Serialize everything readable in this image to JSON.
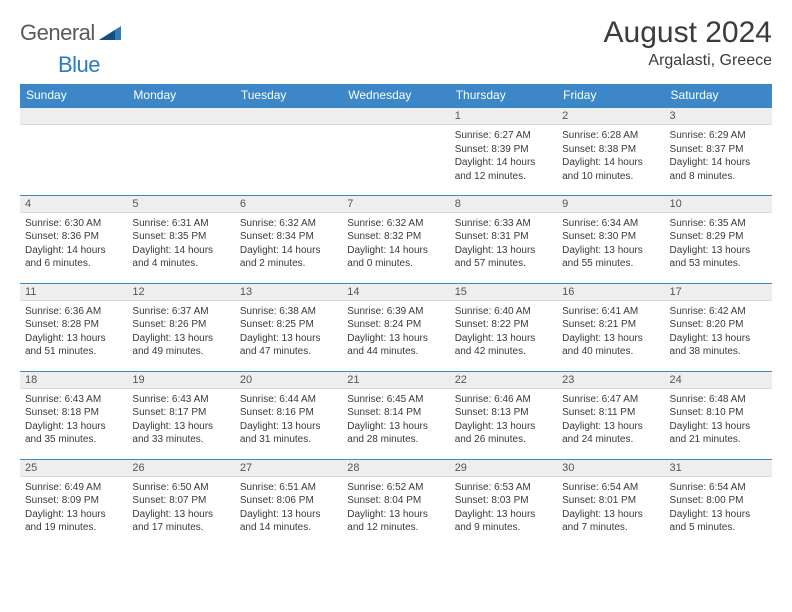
{
  "logo": {
    "text1": "General",
    "text2": "Blue",
    "color1": "#5a5a5a",
    "color2": "#2b7bbf"
  },
  "title": "August 2024",
  "location": "Argalasti, Greece",
  "theme": {
    "header_bg": "#3b87c8",
    "header_text": "#ffffff",
    "strip_bg": "#eeeeee",
    "border": "#3b87c8",
    "body_text": "#3a3a3a",
    "title_fontsize": 30,
    "location_fontsize": 16,
    "dayhead_fontsize": 12,
    "cell_fontsize": 10
  },
  "day_headers": [
    "Sunday",
    "Monday",
    "Tuesday",
    "Wednesday",
    "Thursday",
    "Friday",
    "Saturday"
  ],
  "weeks": [
    [
      {
        "n": "",
        "sr": "",
        "ss": "",
        "dl": ""
      },
      {
        "n": "",
        "sr": "",
        "ss": "",
        "dl": ""
      },
      {
        "n": "",
        "sr": "",
        "ss": "",
        "dl": ""
      },
      {
        "n": "",
        "sr": "",
        "ss": "",
        "dl": ""
      },
      {
        "n": "1",
        "sr": "Sunrise: 6:27 AM",
        "ss": "Sunset: 8:39 PM",
        "dl": "Daylight: 14 hours and 12 minutes."
      },
      {
        "n": "2",
        "sr": "Sunrise: 6:28 AM",
        "ss": "Sunset: 8:38 PM",
        "dl": "Daylight: 14 hours and 10 minutes."
      },
      {
        "n": "3",
        "sr": "Sunrise: 6:29 AM",
        "ss": "Sunset: 8:37 PM",
        "dl": "Daylight: 14 hours and 8 minutes."
      }
    ],
    [
      {
        "n": "4",
        "sr": "Sunrise: 6:30 AM",
        "ss": "Sunset: 8:36 PM",
        "dl": "Daylight: 14 hours and 6 minutes."
      },
      {
        "n": "5",
        "sr": "Sunrise: 6:31 AM",
        "ss": "Sunset: 8:35 PM",
        "dl": "Daylight: 14 hours and 4 minutes."
      },
      {
        "n": "6",
        "sr": "Sunrise: 6:32 AM",
        "ss": "Sunset: 8:34 PM",
        "dl": "Daylight: 14 hours and 2 minutes."
      },
      {
        "n": "7",
        "sr": "Sunrise: 6:32 AM",
        "ss": "Sunset: 8:32 PM",
        "dl": "Daylight: 14 hours and 0 minutes."
      },
      {
        "n": "8",
        "sr": "Sunrise: 6:33 AM",
        "ss": "Sunset: 8:31 PM",
        "dl": "Daylight: 13 hours and 57 minutes."
      },
      {
        "n": "9",
        "sr": "Sunrise: 6:34 AM",
        "ss": "Sunset: 8:30 PM",
        "dl": "Daylight: 13 hours and 55 minutes."
      },
      {
        "n": "10",
        "sr": "Sunrise: 6:35 AM",
        "ss": "Sunset: 8:29 PM",
        "dl": "Daylight: 13 hours and 53 minutes."
      }
    ],
    [
      {
        "n": "11",
        "sr": "Sunrise: 6:36 AM",
        "ss": "Sunset: 8:28 PM",
        "dl": "Daylight: 13 hours and 51 minutes."
      },
      {
        "n": "12",
        "sr": "Sunrise: 6:37 AM",
        "ss": "Sunset: 8:26 PM",
        "dl": "Daylight: 13 hours and 49 minutes."
      },
      {
        "n": "13",
        "sr": "Sunrise: 6:38 AM",
        "ss": "Sunset: 8:25 PM",
        "dl": "Daylight: 13 hours and 47 minutes."
      },
      {
        "n": "14",
        "sr": "Sunrise: 6:39 AM",
        "ss": "Sunset: 8:24 PM",
        "dl": "Daylight: 13 hours and 44 minutes."
      },
      {
        "n": "15",
        "sr": "Sunrise: 6:40 AM",
        "ss": "Sunset: 8:22 PM",
        "dl": "Daylight: 13 hours and 42 minutes."
      },
      {
        "n": "16",
        "sr": "Sunrise: 6:41 AM",
        "ss": "Sunset: 8:21 PM",
        "dl": "Daylight: 13 hours and 40 minutes."
      },
      {
        "n": "17",
        "sr": "Sunrise: 6:42 AM",
        "ss": "Sunset: 8:20 PM",
        "dl": "Daylight: 13 hours and 38 minutes."
      }
    ],
    [
      {
        "n": "18",
        "sr": "Sunrise: 6:43 AM",
        "ss": "Sunset: 8:18 PM",
        "dl": "Daylight: 13 hours and 35 minutes."
      },
      {
        "n": "19",
        "sr": "Sunrise: 6:43 AM",
        "ss": "Sunset: 8:17 PM",
        "dl": "Daylight: 13 hours and 33 minutes."
      },
      {
        "n": "20",
        "sr": "Sunrise: 6:44 AM",
        "ss": "Sunset: 8:16 PM",
        "dl": "Daylight: 13 hours and 31 minutes."
      },
      {
        "n": "21",
        "sr": "Sunrise: 6:45 AM",
        "ss": "Sunset: 8:14 PM",
        "dl": "Daylight: 13 hours and 28 minutes."
      },
      {
        "n": "22",
        "sr": "Sunrise: 6:46 AM",
        "ss": "Sunset: 8:13 PM",
        "dl": "Daylight: 13 hours and 26 minutes."
      },
      {
        "n": "23",
        "sr": "Sunrise: 6:47 AM",
        "ss": "Sunset: 8:11 PM",
        "dl": "Daylight: 13 hours and 24 minutes."
      },
      {
        "n": "24",
        "sr": "Sunrise: 6:48 AM",
        "ss": "Sunset: 8:10 PM",
        "dl": "Daylight: 13 hours and 21 minutes."
      }
    ],
    [
      {
        "n": "25",
        "sr": "Sunrise: 6:49 AM",
        "ss": "Sunset: 8:09 PM",
        "dl": "Daylight: 13 hours and 19 minutes."
      },
      {
        "n": "26",
        "sr": "Sunrise: 6:50 AM",
        "ss": "Sunset: 8:07 PM",
        "dl": "Daylight: 13 hours and 17 minutes."
      },
      {
        "n": "27",
        "sr": "Sunrise: 6:51 AM",
        "ss": "Sunset: 8:06 PM",
        "dl": "Daylight: 13 hours and 14 minutes."
      },
      {
        "n": "28",
        "sr": "Sunrise: 6:52 AM",
        "ss": "Sunset: 8:04 PM",
        "dl": "Daylight: 13 hours and 12 minutes."
      },
      {
        "n": "29",
        "sr": "Sunrise: 6:53 AM",
        "ss": "Sunset: 8:03 PM",
        "dl": "Daylight: 13 hours and 9 minutes."
      },
      {
        "n": "30",
        "sr": "Sunrise: 6:54 AM",
        "ss": "Sunset: 8:01 PM",
        "dl": "Daylight: 13 hours and 7 minutes."
      },
      {
        "n": "31",
        "sr": "Sunrise: 6:54 AM",
        "ss": "Sunset: 8:00 PM",
        "dl": "Daylight: 13 hours and 5 minutes."
      }
    ]
  ]
}
